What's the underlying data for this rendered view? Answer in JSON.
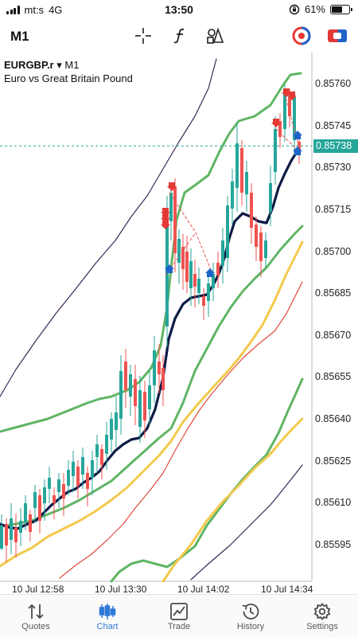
{
  "status_bar": {
    "carrier": "mt:s",
    "network": "4G",
    "time": "13:50",
    "battery_percent": "61%",
    "battery_level": 0.61
  },
  "toolbar": {
    "timeframe": "M1",
    "tools": [
      "crosshair-icon",
      "indicator-function-icon",
      "objects-icon",
      "account-icon",
      "one-click-trading-icon"
    ]
  },
  "chart": {
    "symbol": "EURGBP.r",
    "timeframe": "M1",
    "description": "Euro vs Great Britain Pound",
    "current_price": "0.85738",
    "price_labels": [
      "0.85760",
      "0.85745",
      "0.85730",
      "0.85715",
      "0.85700",
      "0.85685",
      "0.85670",
      "0.85655",
      "0.85640",
      "0.85625",
      "0.85610",
      "0.85595"
    ],
    "time_labels": [
      "10 Jul 12:58",
      "10 Jul 13:30",
      "10 Jul 14:02",
      "10 Jul 14:34"
    ],
    "colors": {
      "bull": "#26a69a",
      "bear": "#ef5350",
      "sma": "#0d1b45",
      "bands": "#5fb564",
      "yellow": "#f2c94c",
      "red_ma": "#e04a3c",
      "envelope": "#3c2657",
      "current": "#26a69a"
    }
  },
  "tabbar": {
    "items": [
      {
        "label": "Quotes",
        "icon": "quotes-arrows-icon",
        "active": false
      },
      {
        "label": "Chart",
        "icon": "candlestick-chart-icon",
        "active": true
      },
      {
        "label": "Trade",
        "icon": "trade-chart-icon",
        "active": false
      },
      {
        "label": "History",
        "icon": "history-clock-icon",
        "active": false
      },
      {
        "label": "Settings",
        "icon": "settings-gear-icon",
        "active": false
      }
    ]
  }
}
